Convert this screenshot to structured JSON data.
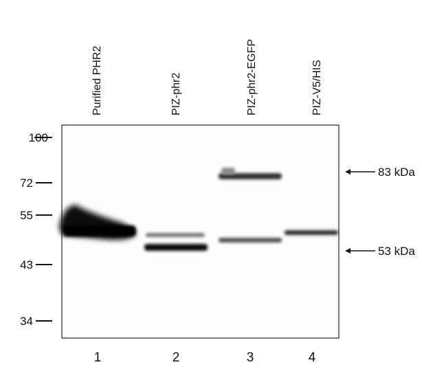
{
  "lanes": [
    {
      "label": "Purified PHR2",
      "number": 1
    },
    {
      "label": "PIZ-phr2",
      "number": 2
    },
    {
      "label": "PIZ-phr2-EGFP",
      "number": 3
    },
    {
      "label": "PIZ-V5/HIS",
      "number": 4
    }
  ],
  "markers": [
    100,
    72,
    55,
    43,
    34
  ],
  "annotations": [
    "83 kDa",
    "53 kDa"
  ]
}
